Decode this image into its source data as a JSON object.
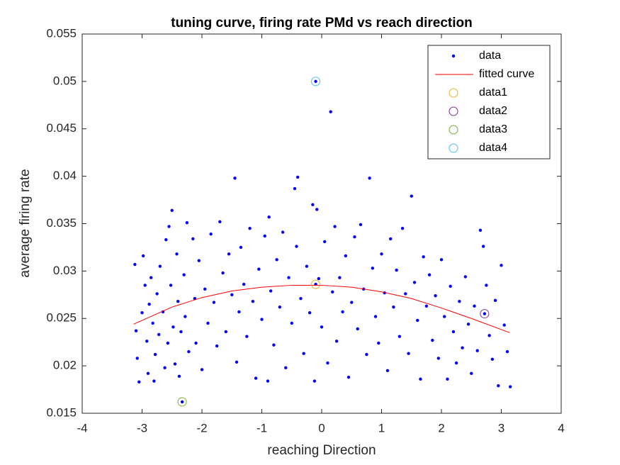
{
  "chart_data": {
    "type": "scatter",
    "title": "tuning curve, firing rate PMd vs reach direction",
    "x_label": "reaching Direction",
    "y_label": "average firing rate",
    "xlim": [
      -4,
      4
    ],
    "xticks": [
      -4,
      -3,
      -2,
      -1,
      0,
      1,
      2,
      3,
      4
    ],
    "ylim": [
      0.015,
      0.055
    ],
    "yticks": [
      0.015,
      0.02,
      0.025,
      0.03,
      0.035,
      0.04,
      0.045,
      0.05,
      0.055
    ],
    "grid": false,
    "legend": "top-right",
    "series": [
      {
        "name": "data",
        "color": "#0000ff",
        "marker": "dot",
        "x": [
          -3.12,
          -3.1,
          -3.08,
          -3.05,
          -3.0,
          -2.98,
          -2.95,
          -2.92,
          -2.9,
          -2.88,
          -2.85,
          -2.82,
          -2.8,
          -2.78,
          -2.75,
          -2.72,
          -2.7,
          -2.65,
          -2.62,
          -2.6,
          -2.57,
          -2.55,
          -2.52,
          -2.5,
          -2.48,
          -2.45,
          -2.42,
          -2.4,
          -2.38,
          -2.35,
          -2.3,
          -2.28,
          -2.25,
          -2.22,
          -2.15,
          -2.12,
          -2.1,
          -2.05,
          -2.0,
          -1.95,
          -1.9,
          -1.85,
          -1.8,
          -1.75,
          -1.7,
          -1.65,
          -1.6,
          -1.55,
          -1.5,
          -1.45,
          -1.42,
          -1.38,
          -1.35,
          -1.3,
          -1.25,
          -1.2,
          -1.15,
          -1.1,
          -1.05,
          -1.0,
          -0.95,
          -0.9,
          -0.88,
          -0.85,
          -0.8,
          -0.75,
          -0.7,
          -0.65,
          -0.6,
          -0.55,
          -0.5,
          -0.45,
          -0.42,
          -0.4,
          -0.35,
          -0.3,
          -0.25,
          -0.2,
          -0.15,
          -0.12,
          -0.1,
          -0.08,
          -0.05,
          0.0,
          0.05,
          0.1,
          0.15,
          0.18,
          0.22,
          0.25,
          0.3,
          0.35,
          0.4,
          0.45,
          0.5,
          0.55,
          0.6,
          0.65,
          0.7,
          0.75,
          0.8,
          0.85,
          0.9,
          0.95,
          1.0,
          1.05,
          1.1,
          1.15,
          1.2,
          1.25,
          1.3,
          1.35,
          1.4,
          1.45,
          1.5,
          1.55,
          1.6,
          1.65,
          1.7,
          1.75,
          1.8,
          1.85,
          1.9,
          1.95,
          2.0,
          2.05,
          2.1,
          2.15,
          2.2,
          2.25,
          2.3,
          2.35,
          2.4,
          2.45,
          2.5,
          2.55,
          2.6,
          2.65,
          2.7,
          2.72,
          2.75,
          2.8,
          2.85,
          2.9,
          2.95,
          3.0,
          3.05,
          3.1,
          3.15,
          -2.33,
          -0.1
        ],
        "values": [
          0.0307,
          0.0237,
          0.0208,
          0.0183,
          0.0256,
          0.0316,
          0.0285,
          0.0226,
          0.0192,
          0.0265,
          0.0293,
          0.0245,
          0.0184,
          0.0212,
          0.0276,
          0.0233,
          0.0305,
          0.0257,
          0.0198,
          0.0333,
          0.0224,
          0.0347,
          0.0285,
          0.0364,
          0.0241,
          0.0202,
          0.0318,
          0.0268,
          0.0189,
          0.0236,
          0.0296,
          0.0252,
          0.0351,
          0.0215,
          0.0334,
          0.0271,
          0.0224,
          0.0311,
          0.0196,
          0.0281,
          0.0245,
          0.0339,
          0.0267,
          0.0221,
          0.0352,
          0.0298,
          0.0236,
          0.0318,
          0.0275,
          0.0398,
          0.0204,
          0.0257,
          0.0325,
          0.0286,
          0.0231,
          0.0345,
          0.0268,
          0.0187,
          0.0302,
          0.0249,
          0.0337,
          0.0184,
          0.0357,
          0.0279,
          0.0222,
          0.0312,
          0.0262,
          0.0341,
          0.0198,
          0.0293,
          0.0245,
          0.0387,
          0.0326,
          0.0399,
          0.0271,
          0.0213,
          0.0305,
          0.0256,
          0.037,
          0.0184,
          0.05,
          0.0365,
          0.0292,
          0.0241,
          0.0331,
          0.0203,
          0.0468,
          0.0278,
          0.0347,
          0.0226,
          0.0293,
          0.0257,
          0.0316,
          0.0188,
          0.0267,
          0.0336,
          0.0239,
          0.0349,
          0.0281,
          0.0212,
          0.0398,
          0.0303,
          0.0252,
          0.0224,
          0.0318,
          0.0277,
          0.0195,
          0.0334,
          0.0262,
          0.0301,
          0.0231,
          0.0345,
          0.0276,
          0.0213,
          0.0379,
          0.0288,
          0.0248,
          0.0186,
          0.0315,
          0.0263,
          0.0296,
          0.0227,
          0.0274,
          0.0208,
          0.0312,
          0.0252,
          0.0186,
          0.0284,
          0.0236,
          0.0203,
          0.0268,
          0.0219,
          0.0294,
          0.0244,
          0.0192,
          0.0263,
          0.0216,
          0.0343,
          0.0326,
          0.0255,
          0.0285,
          0.0232,
          0.0207,
          0.0269,
          0.0179,
          0.0306,
          0.0243,
          0.0215,
          0.0178,
          0.0162,
          0.0286
        ]
      },
      {
        "name": "fitted curve",
        "color": "#ff0000",
        "marker": "none",
        "x": [
          -3.14,
          -2.5,
          -2,
          -1.5,
          -1,
          -0.5,
          0,
          0.5,
          1,
          1.5,
          2,
          2.5,
          3.14
        ],
        "values": [
          0.0244,
          0.0262,
          0.0272,
          0.0279,
          0.0283,
          0.0285,
          0.0285,
          0.0283,
          0.0278,
          0.0271,
          0.0261,
          0.025,
          0.0235
        ]
      },
      {
        "name": "data1",
        "color": "#edb120",
        "marker": "circle",
        "x": [
          -0.1
        ],
        "values": [
          0.0286
        ]
      },
      {
        "name": "data2",
        "color": "#7e2f8e",
        "marker": "circle",
        "x": [
          2.72
        ],
        "values": [
          0.0255
        ]
      },
      {
        "name": "data3",
        "color": "#77ac30",
        "marker": "circle",
        "x": [
          -2.33
        ],
        "values": [
          0.0162
        ]
      },
      {
        "name": "data4",
        "color": "#4dbeee",
        "marker": "circle",
        "x": [
          -0.1
        ],
        "values": [
          0.05
        ]
      }
    ]
  }
}
